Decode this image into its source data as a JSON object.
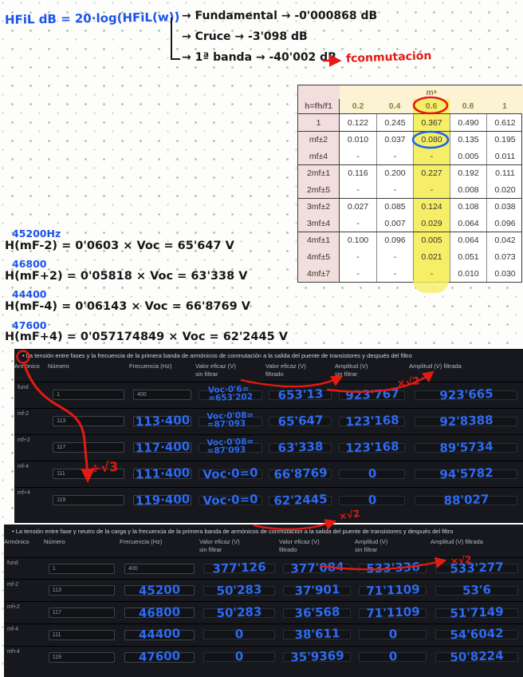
{
  "colors": {
    "ink_blue": "#1c54e8",
    "ink_black": "#171717",
    "ink_red": "#e31b12",
    "hw_blue": "#2e6af2",
    "dark_table_bg": "#16181d",
    "highlight_yellow": "#f6ee67",
    "pink_header": "#f2dedc",
    "cream_header": "#fcf3d5"
  },
  "notes": {
    "formula": "HFiL dB = 20·log(HFiL(w))",
    "branches": [
      "→ Fundamental → -0'000868 dB",
      "→ Cruce → -3'098 dB",
      "→ 1ª banda → -40'002 dB"
    ],
    "fconmutacion": "fconmutación",
    "calcs": [
      {
        "freq": "45200Hz",
        "expr": "H(mF-2) = 0'0603 × Voc = 65'647 V"
      },
      {
        "freq": "46800",
        "expr": "H(mF+2) = 0'05818 × Voc = 63'338 V"
      },
      {
        "freq": "44400",
        "expr": "H(mF-4) = 0'06143 × Voc = 66'8769 V"
      },
      {
        "freq": "47600",
        "expr": "H(mF+4) = 0'057174849 × Voc = 62'2445 V"
      }
    ]
  },
  "annotations": {
    "x_sqrt2": "×√2",
    "div_sqrt3": "÷√3"
  },
  "harmonics_table": {
    "corner": "h=fh/f1",
    "group_header_main": "m",
    "group_header_sub": "a",
    "columns": [
      "0.2",
      "0.4",
      "0.6",
      "0.8",
      "1"
    ],
    "highlight_index": 2,
    "rows": [
      {
        "label": "1",
        "group_start": false,
        "values": [
          "0.122",
          "0.245",
          "0.367",
          "0.490",
          "0.612"
        ]
      },
      {
        "label": "mf±2",
        "group_start": true,
        "values": [
          "0.010",
          "0.037",
          "0.080",
          "0.135",
          "0.195"
        ]
      },
      {
        "label": "mf±4",
        "group_start": false,
        "values": [
          "-",
          "-",
          "-",
          "0.005",
          "0.011"
        ]
      },
      {
        "label": "2mf±1",
        "group_start": true,
        "values": [
          "0.116",
          "0.200",
          "0.227",
          "0.192",
          "0.111"
        ]
      },
      {
        "label": "2mf±5",
        "group_start": false,
        "values": [
          "-",
          "-",
          "-",
          "0.008",
          "0.020"
        ]
      },
      {
        "label": "3mf±2",
        "group_start": true,
        "values": [
          "0.027",
          "0.085",
          "0.124",
          "0.108",
          "0.038"
        ]
      },
      {
        "label": "3mf±4",
        "group_start": false,
        "values": [
          "-",
          "0.007",
          "0.029",
          "0.064",
          "0.096"
        ]
      },
      {
        "label": "4mf±1",
        "group_start": true,
        "values": [
          "0.100",
          "0.096",
          "0.005",
          "0.064",
          "0.042"
        ]
      },
      {
        "label": "4mf±5",
        "group_start": false,
        "values": [
          "-",
          "-",
          "0.021",
          "0.051",
          "0.073"
        ]
      },
      {
        "label": "4mf±7",
        "group_start": false,
        "values": [
          "-",
          "-",
          "-",
          "0.010",
          "0.030"
        ]
      }
    ]
  },
  "table1": {
    "bullet": "•",
    "title": "La tensión entre fases y la frecuencia de la primera banda de armónicos de conmutación a la salida del puente de transistores y después del filtro",
    "headers": [
      "Armónico",
      "Número",
      "Frecuencia (Hz)",
      "Valor eficaz (V)\nsin filtrar",
      "Valor eficaz (V)\nfiltrado",
      "Amplitud (V)\nsin filtrar",
      "Amplitud (V) filtrada"
    ],
    "rows": [
      {
        "armonico": "fund",
        "numero": "1",
        "frecuencia": "400",
        "frecuencia_hw": "",
        "rms_sin_hw": "Voc·0'6=\n=653'202",
        "rms_filt_hw": "653'13",
        "amp_sin_hw": "923'767",
        "amp_filt_hw": "923'665"
      },
      {
        "armonico": "mf-2",
        "numero": "113",
        "frecuencia": "",
        "frecuencia_hw": "113·400",
        "rms_sin_hw": "Voc·0'08=\n=87'093",
        "rms_filt_hw": "65'647",
        "amp_sin_hw": "123'168",
        "amp_filt_hw": "92'8388"
      },
      {
        "armonico": "mf+2",
        "numero": "117",
        "frecuencia": "",
        "frecuencia_hw": "117·400",
        "rms_sin_hw": "Voc·0'08=\n=87'093",
        "rms_filt_hw": "63'338",
        "amp_sin_hw": "123'168",
        "amp_filt_hw": "89'5734"
      },
      {
        "armonico": "mf-4",
        "numero": "111",
        "frecuencia": "",
        "frecuencia_hw": "111·400",
        "rms_sin_hw": "Voc·0=0",
        "rms_filt_hw": "66'8769",
        "amp_sin_hw": "0",
        "amp_filt_hw": "94'5782"
      },
      {
        "armonico": "mf+4",
        "numero": "119",
        "frecuencia": "",
        "frecuencia_hw": "119·400",
        "rms_sin_hw": "Voc·0=0",
        "rms_filt_hw": "62'2445",
        "amp_sin_hw": "0",
        "amp_filt_hw": "88'027"
      }
    ]
  },
  "table2": {
    "bullet": "•",
    "title": "La tensión entre fase y neutro de la carga y la frecuencia de la primera banda de armónicos de conmutación a la salida del puente de transistores y después del filtro",
    "headers": [
      "Armónico",
      "Número",
      "Frecuencia (Hz)",
      "Valor eficaz (V)\nsin filtrar",
      "Valor eficaz (V)\nfiltrado",
      "Amplitud (V)\nsin filtrar",
      "Amplitud (V) filtrada"
    ],
    "rows": [
      {
        "armonico": "fund",
        "numero": "1",
        "frecuencia": "400",
        "frecuencia_hw": "",
        "rms_sin_hw": "377'126",
        "rms_filt_hw": "377'084",
        "amp_sin_hw": "533'336",
        "amp_filt_hw": "533'277"
      },
      {
        "armonico": "mf-2",
        "numero": "113",
        "frecuencia": "",
        "frecuencia_hw": "45200",
        "rms_sin_hw": "50'283",
        "rms_filt_hw": "37'901",
        "amp_sin_hw": "71'1109",
        "amp_filt_hw": "53'6"
      },
      {
        "armonico": "mf+2",
        "numero": "117",
        "frecuencia": "",
        "frecuencia_hw": "46800",
        "rms_sin_hw": "50'283",
        "rms_filt_hw": "36'568",
        "amp_sin_hw": "71'1109",
        "amp_filt_hw": "51'7149"
      },
      {
        "armonico": "mf-4",
        "numero": "111",
        "frecuencia": "",
        "frecuencia_hw": "44400",
        "rms_sin_hw": "0",
        "rms_filt_hw": "38'611",
        "amp_sin_hw": "0",
        "amp_filt_hw": "54'6042"
      },
      {
        "armonico": "mf+4",
        "numero": "119",
        "frecuencia": "",
        "frecuencia_hw": "47600",
        "rms_sin_hw": "0",
        "rms_filt_hw": "35'9369",
        "amp_sin_hw": "0",
        "amp_filt_hw": "50'8224"
      }
    ]
  }
}
